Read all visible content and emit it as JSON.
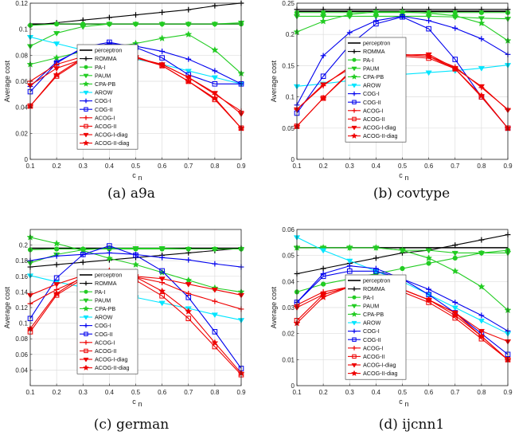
{
  "series_styles": [
    {
      "name": "perceptron",
      "color": "#000000",
      "marker": "none",
      "width": 1.6
    },
    {
      "name": "ROMMA",
      "color": "#000000",
      "marker": "plus",
      "width": 1.1
    },
    {
      "name": "PA-I",
      "color": "#22cc22",
      "marker": "circle",
      "width": 1.1
    },
    {
      "name": "PAUM",
      "color": "#22cc22",
      "marker": "tri-down",
      "width": 1.1
    },
    {
      "name": "CPA-PB",
      "color": "#22cc22",
      "marker": "star",
      "width": 1.1
    },
    {
      "name": "AROW",
      "color": "#00e5ff",
      "marker": "tri-down",
      "width": 1.1
    },
    {
      "name": "COG-I",
      "color": "#0000ee",
      "marker": "plus",
      "width": 1.1
    },
    {
      "name": "COG-II",
      "color": "#0000ee",
      "marker": "square",
      "width": 1.1
    },
    {
      "name": "ACOG-I",
      "color": "#ee0000",
      "marker": "plus",
      "width": 1.1
    },
    {
      "name": "ACOG-II",
      "color": "#ee0000",
      "marker": "square",
      "width": 1.1
    },
    {
      "name": "ACOG-I-diag",
      "color": "#ee0000",
      "marker": "tri-down",
      "width": 1.1
    },
    {
      "name": "ACOG-II-diag",
      "color": "#ee0000",
      "marker": "star",
      "width": 1.1
    }
  ],
  "chart_data": [
    {
      "type": "line",
      "caption": "(a) a9a",
      "xlabel": "c",
      "xlabel_sub": "n",
      "ylabel": "Average cost",
      "x": [
        0.1,
        0.2,
        0.3,
        0.4,
        0.5,
        0.6,
        0.7,
        0.8,
        0.9
      ],
      "xlim": [
        0.1,
        0.9
      ],
      "ylim": [
        0,
        0.12
      ],
      "yticks": [
        0,
        0.02,
        0.04,
        0.06,
        0.08,
        0.1,
        0.12
      ],
      "ytick_labels": [
        "0",
        "0.02",
        "0.04",
        "0.06",
        "0.08",
        "0.1",
        "0.12"
      ],
      "grid": true,
      "legend_position": "center-right",
      "series": [
        {
          "name": "perceptron",
          "values": [
            0.104,
            0.104,
            0.104,
            0.104,
            0.104,
            0.104,
            0.104,
            0.104,
            0.104
          ]
        },
        {
          "name": "ROMMA",
          "values": [
            0.103,
            0.105,
            0.107,
            0.109,
            0.111,
            0.113,
            0.115,
            0.118,
            0.12
          ]
        },
        {
          "name": "PA-I",
          "values": [
            0.103,
            0.104,
            0.104,
            0.104,
            0.104,
            0.104,
            0.104,
            0.104,
            0.104
          ]
        },
        {
          "name": "PAUM",
          "values": [
            0.087,
            0.097,
            0.102,
            0.104,
            0.104,
            0.104,
            0.104,
            0.104,
            0.105
          ]
        },
        {
          "name": "CPA-PB",
          "values": [
            0.073,
            0.078,
            0.083,
            0.086,
            0.089,
            0.093,
            0.096,
            0.084,
            0.066
          ]
        },
        {
          "name": "AROW",
          "values": [
            0.094,
            0.089,
            0.084,
            0.079,
            0.077,
            0.073,
            0.068,
            0.063,
            0.058
          ]
        },
        {
          "name": "COG-I",
          "values": [
            0.056,
            0.075,
            0.085,
            0.089,
            0.087,
            0.083,
            0.077,
            0.068,
            0.058
          ]
        },
        {
          "name": "COG-II",
          "values": [
            0.052,
            0.074,
            0.086,
            0.09,
            0.086,
            0.078,
            0.065,
            0.058,
            0.058
          ]
        },
        {
          "name": "ACOG-I",
          "values": [
            0.06,
            0.073,
            0.079,
            0.08,
            0.078,
            0.073,
            0.063,
            0.05,
            0.037
          ]
        },
        {
          "name": "ACOG-II",
          "values": [
            0.041,
            0.064,
            0.077,
            0.08,
            0.078,
            0.072,
            0.06,
            0.046,
            0.024
          ]
        },
        {
          "name": "ACOG-I-diag",
          "values": [
            0.057,
            0.07,
            0.077,
            0.079,
            0.078,
            0.073,
            0.063,
            0.051,
            0.035
          ]
        },
        {
          "name": "ACOG-II-diag",
          "values": [
            0.041,
            0.065,
            0.078,
            0.081,
            0.079,
            0.072,
            0.06,
            0.047,
            0.024
          ]
        }
      ]
    },
    {
      "type": "line",
      "caption": "(b) covtype",
      "xlabel": "c",
      "xlabel_sub": "n",
      "ylabel": "Average cost",
      "x": [
        0.1,
        0.2,
        0.3,
        0.4,
        0.5,
        0.6,
        0.7,
        0.8,
        0.9
      ],
      "xlim": [
        0.1,
        0.9
      ],
      "ylim": [
        0,
        0.25
      ],
      "yticks": [
        0,
        0.05,
        0.1,
        0.15,
        0.2,
        0.25
      ],
      "ytick_labels": [
        "0",
        "0.05",
        "0.1",
        "0.15",
        "0.2",
        "0.25"
      ],
      "grid": true,
      "legend_position": "center-right",
      "series": [
        {
          "name": "perceptron",
          "values": [
            0.237,
            0.237,
            0.237,
            0.237,
            0.237,
            0.237,
            0.237,
            0.237,
            0.237
          ]
        },
        {
          "name": "ROMMA",
          "values": [
            0.24,
            0.24,
            0.24,
            0.24,
            0.24,
            0.24,
            0.24,
            0.24,
            0.24
          ]
        },
        {
          "name": "PA-I",
          "values": [
            0.235,
            0.235,
            0.235,
            0.235,
            0.235,
            0.235,
            0.235,
            0.235,
            0.235
          ]
        },
        {
          "name": "PAUM",
          "values": [
            0.229,
            0.229,
            0.229,
            0.229,
            0.229,
            0.229,
            0.228,
            0.226,
            0.225
          ]
        },
        {
          "name": "CPA-PB",
          "values": [
            0.204,
            0.221,
            0.232,
            0.236,
            0.236,
            0.234,
            0.23,
            0.218,
            0.19
          ]
        },
        {
          "name": "AROW",
          "values": [
            0.117,
            0.121,
            0.126,
            0.131,
            0.136,
            0.139,
            0.142,
            0.146,
            0.151
          ]
        },
        {
          "name": "COG-I",
          "values": [
            0.087,
            0.166,
            0.203,
            0.222,
            0.229,
            0.222,
            0.21,
            0.193,
            0.168
          ]
        },
        {
          "name": "COG-II",
          "values": [
            0.074,
            0.133,
            0.183,
            0.217,
            0.228,
            0.209,
            0.16,
            0.1,
            0.05
          ]
        },
        {
          "name": "ACOG-I",
          "values": [
            0.08,
            0.118,
            0.148,
            0.162,
            0.168,
            0.165,
            0.148,
            0.115,
            0.08
          ]
        },
        {
          "name": "ACOG-II",
          "values": [
            0.053,
            0.098,
            0.138,
            0.158,
            0.165,
            0.162,
            0.145,
            0.1,
            0.05
          ]
        },
        {
          "name": "ACOG-I-diag",
          "values": [
            0.08,
            0.12,
            0.145,
            0.16,
            0.167,
            0.168,
            0.146,
            0.117,
            0.079
          ]
        },
        {
          "name": "ACOG-II-diag",
          "values": [
            0.053,
            0.098,
            0.14,
            0.16,
            0.167,
            0.165,
            0.145,
            0.102,
            0.05
          ]
        }
      ]
    },
    {
      "type": "line",
      "caption": "(c) german",
      "xlabel": "c",
      "xlabel_sub": "n",
      "ylabel": "Average cost",
      "x": [
        0.1,
        0.2,
        0.3,
        0.4,
        0.5,
        0.6,
        0.7,
        0.8,
        0.9
      ],
      "xlim": [
        0.1,
        0.9
      ],
      "ylim": [
        0.02,
        0.22
      ],
      "yticks": [
        0.04,
        0.06,
        0.08,
        0.1,
        0.12,
        0.14,
        0.16,
        0.18,
        0.2
      ],
      "ytick_labels": [
        "0.04",
        "0.06",
        "0.08",
        "0.1",
        "0.12",
        "0.14",
        "0.16",
        "0.18",
        "0.2"
      ],
      "grid": true,
      "legend_position": "center-right",
      "series": [
        {
          "name": "perceptron",
          "values": [
            0.196,
            0.196,
            0.196,
            0.196,
            0.196,
            0.196,
            0.196,
            0.196,
            0.196
          ]
        },
        {
          "name": "ROMMA",
          "values": [
            0.172,
            0.175,
            0.178,
            0.181,
            0.184,
            0.187,
            0.19,
            0.193,
            0.196
          ]
        },
        {
          "name": "PA-I",
          "values": [
            0.194,
            0.195,
            0.195,
            0.195,
            0.195,
            0.195,
            0.195,
            0.195,
            0.195
          ]
        },
        {
          "name": "PAUM",
          "values": [
            0.177,
            0.188,
            0.194,
            0.196,
            0.196,
            0.196,
            0.195,
            0.195,
            0.195
          ]
        },
        {
          "name": "CPA-PB",
          "values": [
            0.21,
            0.202,
            0.193,
            0.183,
            0.175,
            0.165,
            0.155,
            0.145,
            0.14
          ]
        },
        {
          "name": "AROW",
          "values": [
            0.161,
            0.153,
            0.146,
            0.14,
            0.133,
            0.126,
            0.119,
            0.111,
            0.104
          ]
        },
        {
          "name": "COG-I",
          "values": [
            0.18,
            0.186,
            0.188,
            0.19,
            0.188,
            0.184,
            0.181,
            0.176,
            0.172
          ]
        },
        {
          "name": "COG-II",
          "values": [
            0.106,
            0.158,
            0.188,
            0.199,
            0.187,
            0.167,
            0.133,
            0.089,
            0.042
          ]
        },
        {
          "name": "ACOG-I",
          "values": [
            0.125,
            0.143,
            0.158,
            0.161,
            0.159,
            0.152,
            0.138,
            0.128,
            0.118
          ]
        },
        {
          "name": "ACOG-II",
          "values": [
            0.089,
            0.136,
            0.157,
            0.163,
            0.155,
            0.135,
            0.106,
            0.07,
            0.034
          ]
        },
        {
          "name": "ACOG-I-diag",
          "values": [
            0.136,
            0.15,
            0.161,
            0.162,
            0.16,
            0.157,
            0.15,
            0.143,
            0.136
          ]
        },
        {
          "name": "ACOG-II-diag",
          "values": [
            0.093,
            0.138,
            0.16,
            0.167,
            0.159,
            0.141,
            0.115,
            0.075,
            0.036
          ]
        }
      ]
    },
    {
      "type": "line",
      "caption": "(d) ijcnn1",
      "xlabel": "c",
      "xlabel_sub": "n",
      "ylabel": "Average cost",
      "x": [
        0.1,
        0.2,
        0.3,
        0.4,
        0.5,
        0.6,
        0.7,
        0.8,
        0.9
      ],
      "xlim": [
        0.1,
        0.9
      ],
      "ylim": [
        0,
        0.06
      ],
      "yticks": [
        0,
        0.01,
        0.02,
        0.03,
        0.04,
        0.05,
        0.06
      ],
      "ytick_labels": [
        "0",
        "0.01",
        "0.02",
        "0.03",
        "0.04",
        "0.05",
        "0.06"
      ],
      "grid": true,
      "legend_position": "center-right",
      "series": [
        {
          "name": "perceptron",
          "values": [
            0.053,
            0.053,
            0.053,
            0.053,
            0.053,
            0.053,
            0.053,
            0.053,
            0.053
          ]
        },
        {
          "name": "ROMMA",
          "values": [
            0.043,
            0.045,
            0.047,
            0.049,
            0.051,
            0.052,
            0.054,
            0.056,
            0.058
          ]
        },
        {
          "name": "PA-I",
          "values": [
            0.036,
            0.039,
            0.041,
            0.043,
            0.045,
            0.047,
            0.049,
            0.051,
            0.052
          ]
        },
        {
          "name": "PAUM",
          "values": [
            0.053,
            0.053,
            0.053,
            0.053,
            0.052,
            0.052,
            0.051,
            0.051,
            0.051
          ]
        },
        {
          "name": "CPA-PB",
          "values": [
            0.053,
            0.053,
            0.053,
            0.053,
            0.052,
            0.049,
            0.044,
            0.038,
            0.029
          ]
        },
        {
          "name": "AROW",
          "values": [
            0.057,
            0.052,
            0.048,
            0.044,
            0.04,
            0.035,
            0.03,
            0.025,
            0.02
          ]
        },
        {
          "name": "COG-I",
          "values": [
            0.032,
            0.043,
            0.046,
            0.045,
            0.041,
            0.037,
            0.032,
            0.027,
            0.021
          ]
        },
        {
          "name": "COG-II",
          "values": [
            0.032,
            0.042,
            0.044,
            0.044,
            0.041,
            0.035,
            0.028,
            0.02,
            0.012
          ]
        },
        {
          "name": "ACOG-I",
          "values": [
            0.031,
            0.036,
            0.038,
            0.039,
            0.037,
            0.033,
            0.028,
            0.019,
            0.01
          ]
        },
        {
          "name": "ACOG-II",
          "values": [
            0.025,
            0.035,
            0.038,
            0.038,
            0.036,
            0.032,
            0.026,
            0.018,
            0.01
          ]
        },
        {
          "name": "ACOG-I-diag",
          "values": [
            0.03,
            0.035,
            0.038,
            0.038,
            0.037,
            0.033,
            0.028,
            0.021,
            0.017
          ]
        },
        {
          "name": "ACOG-II-diag",
          "values": [
            0.024,
            0.034,
            0.038,
            0.039,
            0.037,
            0.033,
            0.027,
            0.019,
            0.01
          ]
        }
      ]
    }
  ]
}
